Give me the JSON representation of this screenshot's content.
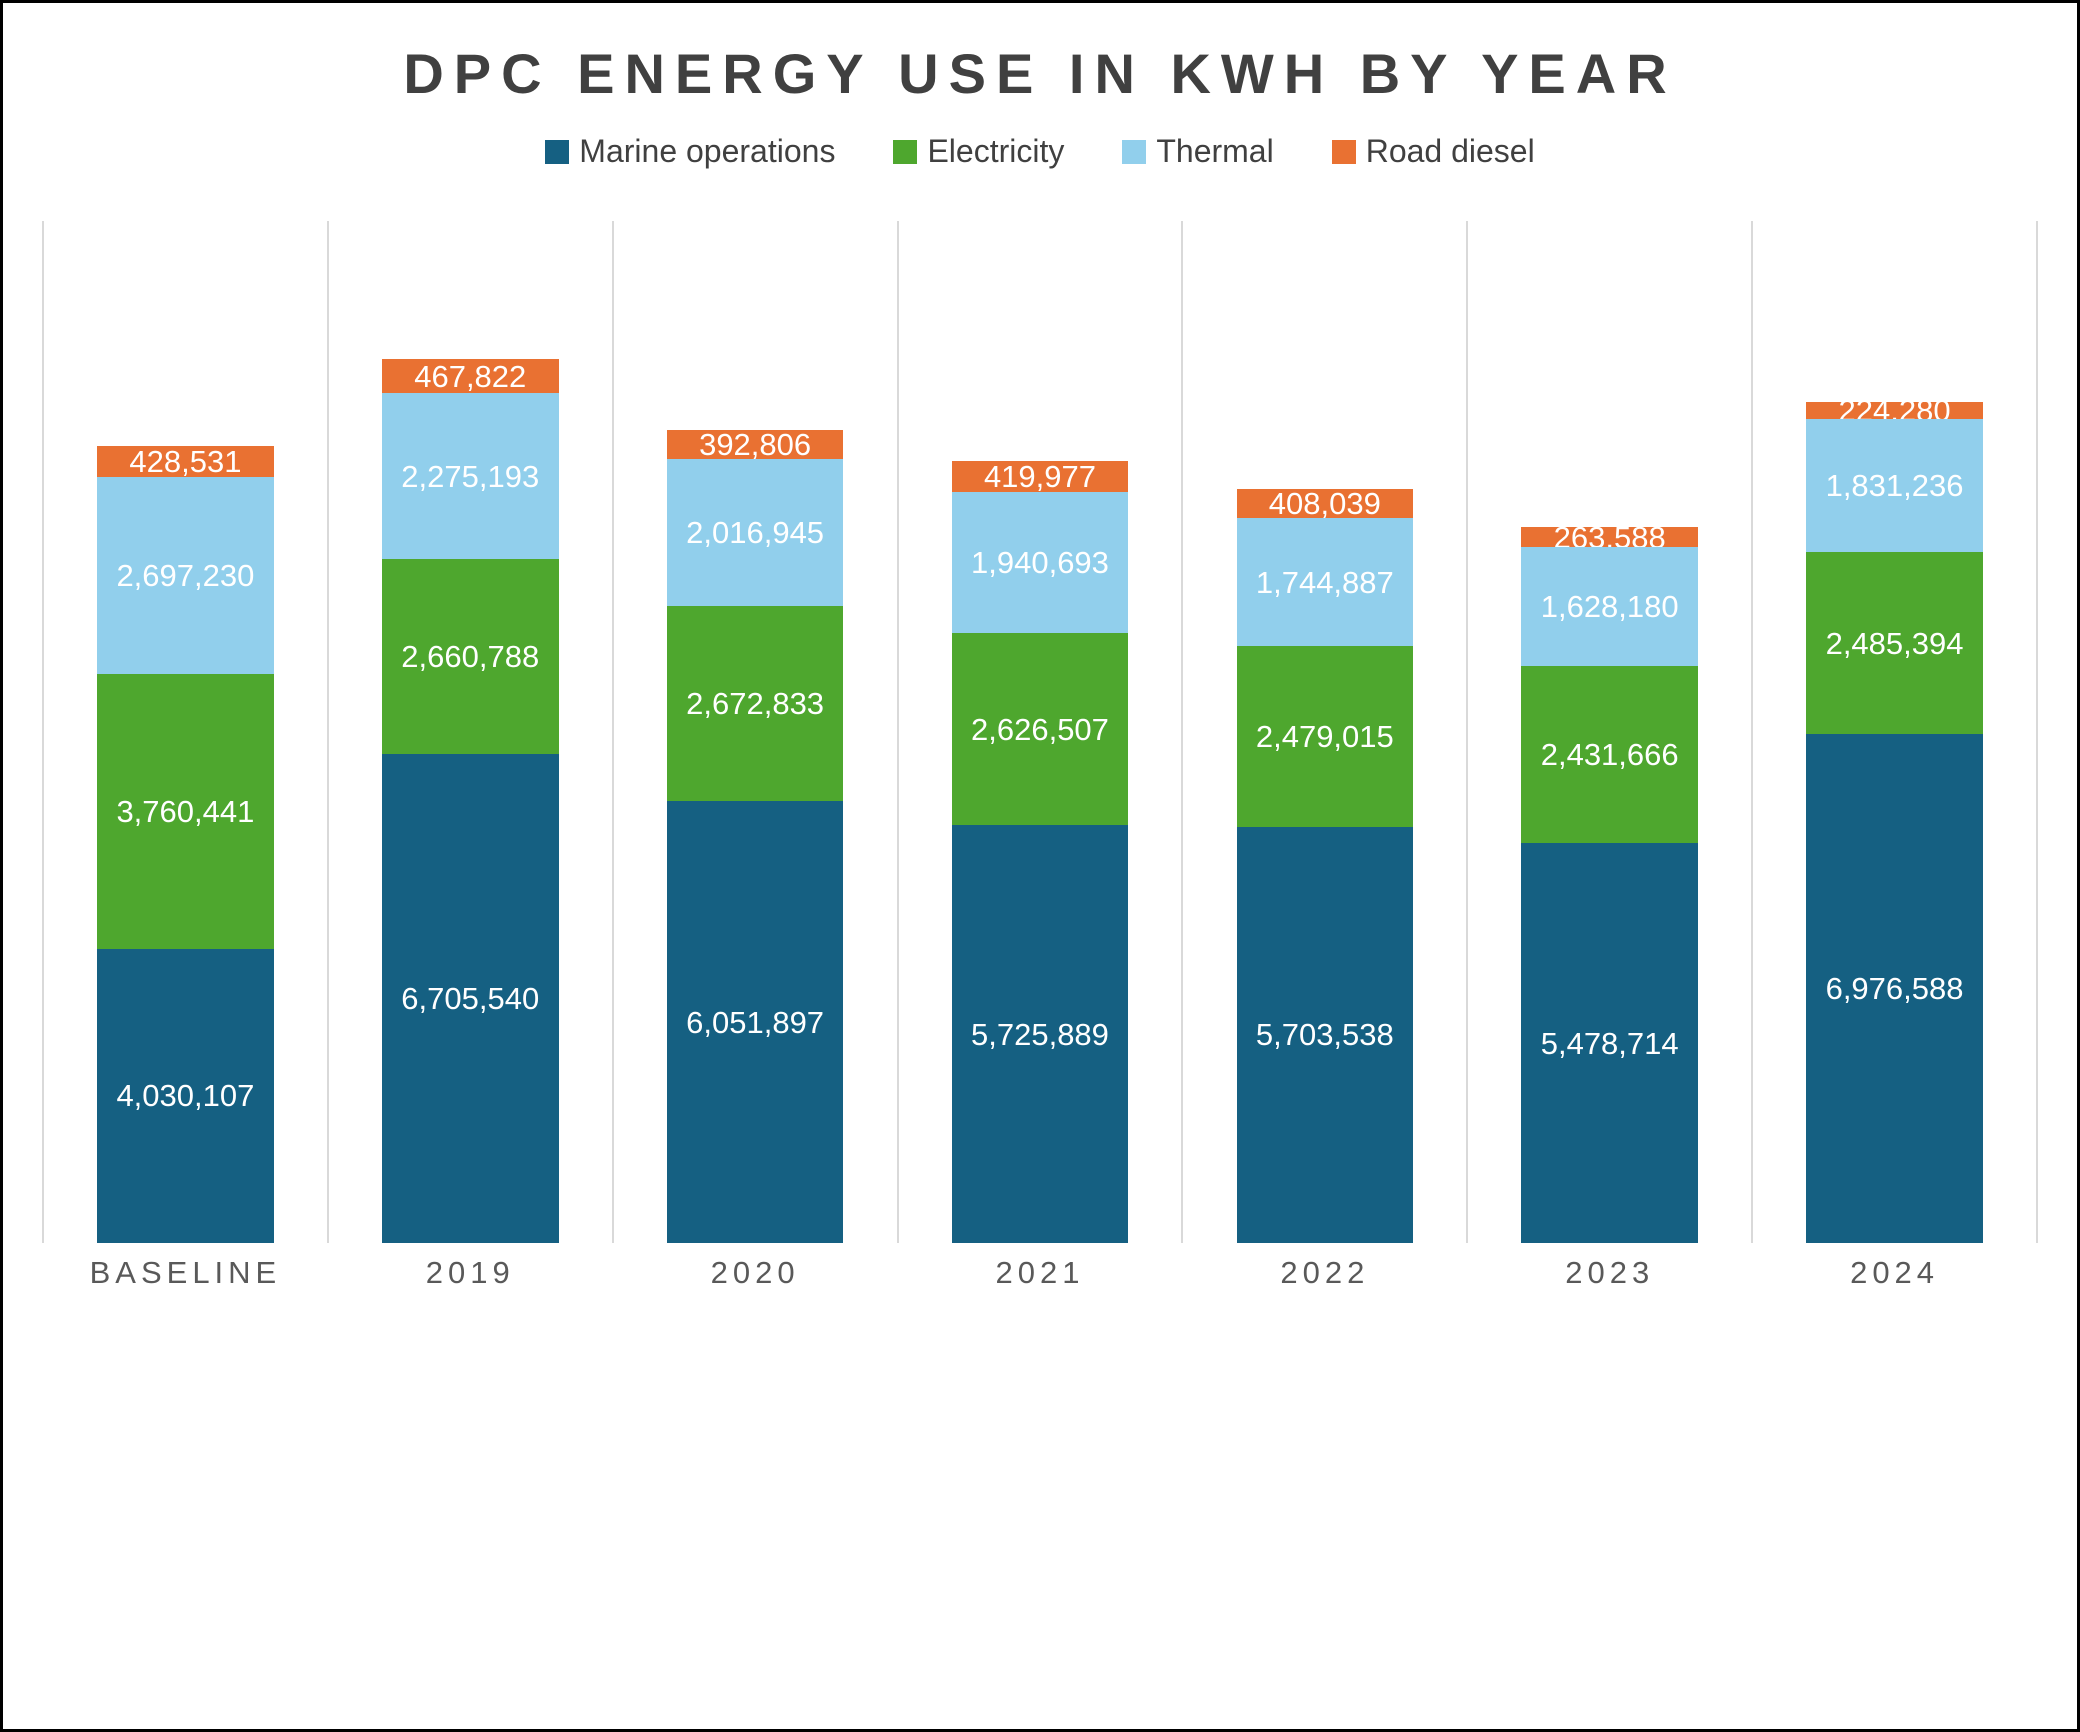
{
  "chart_data": {
    "type": "bar",
    "stacked": true,
    "title": "DPC ENERGY USE IN KWH BY YEAR",
    "xlabel": "",
    "ylabel": "",
    "ylim": [
      0,
      14000000
    ],
    "legend_position": "top",
    "grid": "vertical-category-separators",
    "data_label_color": "#ffffff",
    "categories": [
      "BASELINE",
      "2019",
      "2020",
      "2021",
      "2022",
      "2023",
      "2024"
    ],
    "series": [
      {
        "name": "Marine operations",
        "color": "#156082",
        "values": [
          4030107,
          6705540,
          6051897,
          5725889,
          5703538,
          5478714,
          6976588
        ]
      },
      {
        "name": "Electricity",
        "color": "#4EA72E",
        "values": [
          3760441,
          2660788,
          2672833,
          2626507,
          2479015,
          2431666,
          2485394
        ]
      },
      {
        "name": "Thermal",
        "color": "#91CFEC",
        "values": [
          2697230,
          2275193,
          2016945,
          1940693,
          1744887,
          1628180,
          1831236
        ]
      },
      {
        "name": "Road diesel",
        "color": "#E97132",
        "values": [
          428531,
          467822,
          392806,
          419977,
          408039,
          263588,
          224280
        ]
      }
    ]
  },
  "colors": {
    "title": "#404040",
    "axis_label": "#595959",
    "gridline": "#d9d9d9",
    "frame_border": "#000000",
    "background": "#ffffff"
  }
}
